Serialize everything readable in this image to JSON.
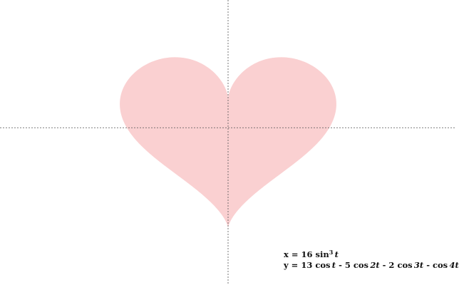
{
  "colors": {
    "background": "#ffffff",
    "heart_fill": "#fad0d1",
    "axis_line": "#555555"
  },
  "equations": {
    "x": {
      "lhs": "x = 16 sin",
      "exp": "3",
      "var": "t"
    },
    "y": {
      "p1": "y = 13 cos",
      "v1": "t",
      "p2": " - 5 cos",
      "v2": "2t",
      "p3": " - 2 cos",
      "v3": "3t",
      "p4": " - cos",
      "v4": "4t"
    }
  },
  "curve": {
    "param": "t",
    "t_range": [
      0,
      6.283185307179586
    ],
    "x_axis_range": [
      -33.7,
      33.7
    ],
    "y_axis_range": [
      -26.6,
      21.6
    ]
  }
}
